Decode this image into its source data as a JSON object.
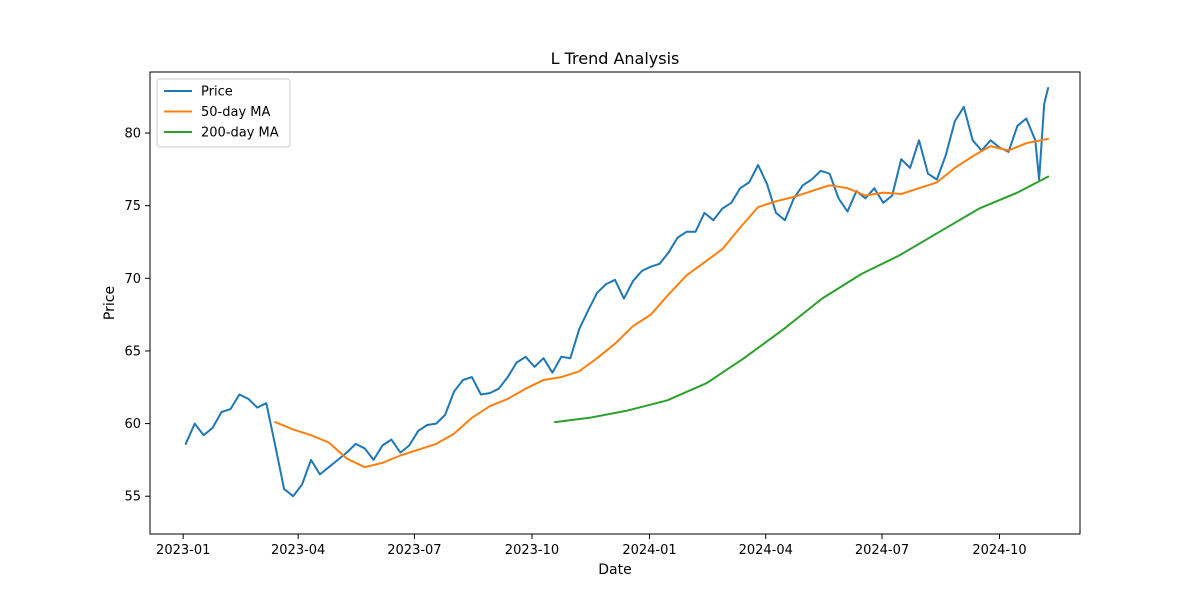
{
  "chart_data": {
    "type": "line",
    "title": "L Trend Analysis",
    "xlabel": "Date",
    "ylabel": "Price",
    "x_start": "2023-01-01",
    "x_end": "2024-11-08",
    "xlim": [
      "2022-12-06",
      "2024-12-03"
    ],
    "ylim": [
      52.4,
      84.2
    ],
    "x_ticks": [
      "2023-01",
      "2023-04",
      "2023-07",
      "2023-10",
      "2024-01",
      "2024-04",
      "2024-07",
      "2024-10"
    ],
    "y_ticks": [
      55,
      60,
      65,
      70,
      75,
      80
    ],
    "grid": false,
    "legend_position": "top-left",
    "series": [
      {
        "name": "Price",
        "color": "#1f77b4",
        "points": [
          [
            "2023-01-03",
            58.6
          ],
          [
            "2023-01-10",
            60.0
          ],
          [
            "2023-01-17",
            59.2
          ],
          [
            "2023-01-24",
            59.7
          ],
          [
            "2023-01-31",
            60.8
          ],
          [
            "2023-02-07",
            61.0
          ],
          [
            "2023-02-14",
            62.0
          ],
          [
            "2023-02-21",
            61.7
          ],
          [
            "2023-02-28",
            61.1
          ],
          [
            "2023-03-07",
            61.4
          ],
          [
            "2023-03-14",
            58.5
          ],
          [
            "2023-03-21",
            55.5
          ],
          [
            "2023-03-28",
            55.0
          ],
          [
            "2023-04-04",
            55.8
          ],
          [
            "2023-04-11",
            57.5
          ],
          [
            "2023-04-18",
            56.5
          ],
          [
            "2023-04-25",
            57.0
          ],
          [
            "2023-05-02",
            57.5
          ],
          [
            "2023-05-09",
            58.0
          ],
          [
            "2023-05-16",
            58.6
          ],
          [
            "2023-05-23",
            58.3
          ],
          [
            "2023-05-30",
            57.5
          ],
          [
            "2023-06-06",
            58.5
          ],
          [
            "2023-06-13",
            58.9
          ],
          [
            "2023-06-20",
            58.0
          ],
          [
            "2023-06-27",
            58.5
          ],
          [
            "2023-07-04",
            59.5
          ],
          [
            "2023-07-11",
            59.9
          ],
          [
            "2023-07-18",
            60.0
          ],
          [
            "2023-07-25",
            60.6
          ],
          [
            "2023-08-01",
            62.2
          ],
          [
            "2023-08-08",
            63.0
          ],
          [
            "2023-08-15",
            63.2
          ],
          [
            "2023-08-22",
            62.0
          ],
          [
            "2023-08-29",
            62.1
          ],
          [
            "2023-09-05",
            62.4
          ],
          [
            "2023-09-12",
            63.2
          ],
          [
            "2023-09-19",
            64.2
          ],
          [
            "2023-09-26",
            64.6
          ],
          [
            "2023-10-03",
            63.9
          ],
          [
            "2023-10-10",
            64.5
          ],
          [
            "2023-10-17",
            63.5
          ],
          [
            "2023-10-24",
            64.6
          ],
          [
            "2023-10-31",
            64.5
          ],
          [
            "2023-11-07",
            66.5
          ],
          [
            "2023-11-14",
            67.8
          ],
          [
            "2023-11-21",
            69.0
          ],
          [
            "2023-11-28",
            69.6
          ],
          [
            "2023-12-05",
            69.9
          ],
          [
            "2023-12-12",
            68.6
          ],
          [
            "2023-12-19",
            69.8
          ],
          [
            "2023-12-26",
            70.5
          ],
          [
            "2024-01-02",
            70.8
          ],
          [
            "2024-01-09",
            71.0
          ],
          [
            "2024-01-16",
            71.8
          ],
          [
            "2024-01-23",
            72.8
          ],
          [
            "2024-01-30",
            73.2
          ],
          [
            "2024-02-06",
            73.2
          ],
          [
            "2024-02-13",
            74.5
          ],
          [
            "2024-02-20",
            74.0
          ],
          [
            "2024-02-27",
            74.8
          ],
          [
            "2024-03-05",
            75.2
          ],
          [
            "2024-03-12",
            76.2
          ],
          [
            "2024-03-19",
            76.6
          ],
          [
            "2024-03-26",
            77.8
          ],
          [
            "2024-04-02",
            76.5
          ],
          [
            "2024-04-09",
            74.5
          ],
          [
            "2024-04-16",
            74.0
          ],
          [
            "2024-04-23",
            75.5
          ],
          [
            "2024-04-30",
            76.4
          ],
          [
            "2024-05-07",
            76.8
          ],
          [
            "2024-05-14",
            77.4
          ],
          [
            "2024-05-21",
            77.2
          ],
          [
            "2024-05-28",
            75.5
          ],
          [
            "2024-06-04",
            74.6
          ],
          [
            "2024-06-11",
            76.0
          ],
          [
            "2024-06-18",
            75.5
          ],
          [
            "2024-06-25",
            76.2
          ],
          [
            "2024-07-02",
            75.2
          ],
          [
            "2024-07-09",
            75.7
          ],
          [
            "2024-07-16",
            78.2
          ],
          [
            "2024-07-23",
            77.6
          ],
          [
            "2024-07-30",
            79.5
          ],
          [
            "2024-08-06",
            77.2
          ],
          [
            "2024-08-13",
            76.8
          ],
          [
            "2024-08-20",
            78.5
          ],
          [
            "2024-08-27",
            80.8
          ],
          [
            "2024-09-03",
            81.8
          ],
          [
            "2024-09-10",
            79.5
          ],
          [
            "2024-09-17",
            78.8
          ],
          [
            "2024-09-24",
            79.5
          ],
          [
            "2024-10-01",
            79.0
          ],
          [
            "2024-10-08",
            78.7
          ],
          [
            "2024-10-15",
            80.5
          ],
          [
            "2024-10-22",
            81.0
          ],
          [
            "2024-10-29",
            79.5
          ],
          [
            "2024-11-01",
            76.8
          ],
          [
            "2024-11-05",
            82.0
          ],
          [
            "2024-11-08",
            83.1
          ]
        ]
      },
      {
        "name": "50-day MA",
        "color": "#ff7f0e",
        "points": [
          [
            "2023-03-14",
            60.1
          ],
          [
            "2023-03-28",
            59.6
          ],
          [
            "2023-04-11",
            59.2
          ],
          [
            "2023-04-25",
            58.7
          ],
          [
            "2023-05-09",
            57.6
          ],
          [
            "2023-05-23",
            57.0
          ],
          [
            "2023-06-06",
            57.3
          ],
          [
            "2023-06-20",
            57.8
          ],
          [
            "2023-07-04",
            58.2
          ],
          [
            "2023-07-18",
            58.6
          ],
          [
            "2023-08-01",
            59.3
          ],
          [
            "2023-08-15",
            60.4
          ],
          [
            "2023-08-29",
            61.2
          ],
          [
            "2023-09-12",
            61.7
          ],
          [
            "2023-09-26",
            62.4
          ],
          [
            "2023-10-10",
            63.0
          ],
          [
            "2023-10-24",
            63.2
          ],
          [
            "2023-11-07",
            63.6
          ],
          [
            "2023-11-21",
            64.5
          ],
          [
            "2023-12-05",
            65.5
          ],
          [
            "2023-12-19",
            66.7
          ],
          [
            "2024-01-02",
            67.5
          ],
          [
            "2024-01-16",
            68.9
          ],
          [
            "2024-01-30",
            70.2
          ],
          [
            "2024-02-13",
            71.1
          ],
          [
            "2024-02-27",
            72.0
          ],
          [
            "2024-03-12",
            73.5
          ],
          [
            "2024-03-26",
            74.9
          ],
          [
            "2024-04-09",
            75.3
          ],
          [
            "2024-04-23",
            75.6
          ],
          [
            "2024-05-07",
            76.0
          ],
          [
            "2024-05-21",
            76.4
          ],
          [
            "2024-06-04",
            76.2
          ],
          [
            "2024-06-18",
            75.7
          ],
          [
            "2024-07-02",
            75.9
          ],
          [
            "2024-07-16",
            75.8
          ],
          [
            "2024-07-30",
            76.2
          ],
          [
            "2024-08-13",
            76.6
          ],
          [
            "2024-08-27",
            77.6
          ],
          [
            "2024-09-10",
            78.4
          ],
          [
            "2024-09-24",
            79.1
          ],
          [
            "2024-10-08",
            78.8
          ],
          [
            "2024-10-22",
            79.3
          ],
          [
            "2024-11-08",
            79.6
          ]
        ]
      },
      {
        "name": "200-day MA",
        "color": "#2ca02c",
        "points": [
          [
            "2023-10-19",
            60.1
          ],
          [
            "2023-11-15",
            60.4
          ],
          [
            "2023-12-15",
            60.9
          ],
          [
            "2024-01-15",
            61.6
          ],
          [
            "2024-02-15",
            62.8
          ],
          [
            "2024-03-15",
            64.5
          ],
          [
            "2024-04-15",
            66.5
          ],
          [
            "2024-05-15",
            68.6
          ],
          [
            "2024-06-15",
            70.3
          ],
          [
            "2024-07-15",
            71.6
          ],
          [
            "2024-08-15",
            73.2
          ],
          [
            "2024-09-15",
            74.8
          ],
          [
            "2024-10-15",
            75.9
          ],
          [
            "2024-11-08",
            77.0
          ]
        ]
      }
    ]
  }
}
